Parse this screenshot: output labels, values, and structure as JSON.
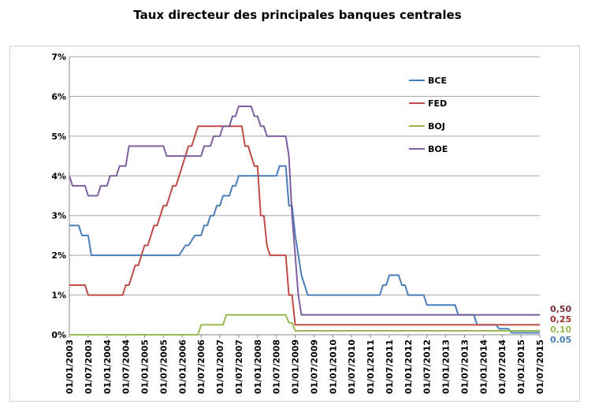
{
  "chart_data": {
    "type": "line",
    "title": "Taux directeur des principales banques centrales",
    "xlabel": "",
    "ylabel": "",
    "ylim": [
      0,
      7
    ],
    "yticks": [
      "0%",
      "1%",
      "2%",
      "3%",
      "4%",
      "5%",
      "6%",
      "7%"
    ],
    "xlim": [
      "2003-01",
      "2015-07"
    ],
    "xticks": [
      "01/01/2003",
      "01/07/2003",
      "01/01/2004",
      "01/07/2004",
      "01/01/2005",
      "01/07/2005",
      "01/01/2006",
      "01/07/2006",
      "01/01/2007",
      "01/07/2007",
      "01/01/2008",
      "01/07/2008",
      "01/01/2009",
      "01/07/2009",
      "01/01/2010",
      "01/07/2010",
      "01/01/2011",
      "01/07/2011",
      "01/01/2012",
      "01/07/2012",
      "01/01/2013",
      "01/07/2013",
      "01/01/2014",
      "01/07/2014",
      "01/01/2015",
      "01/07/2015"
    ],
    "grid": true,
    "legend_position": "top-right",
    "series": [
      {
        "name": "BCE",
        "color": "#4a7ebb",
        "points": [
          [
            "2003-01",
            2.75
          ],
          [
            "2003-04",
            2.75
          ],
          [
            "2003-05",
            2.5
          ],
          [
            "2003-07",
            2.5
          ],
          [
            "2003-08",
            2.0
          ],
          [
            "2005-12",
            2.0
          ],
          [
            "2006-02",
            2.25
          ],
          [
            "2006-03",
            2.25
          ],
          [
            "2006-05",
            2.5
          ],
          [
            "2006-07",
            2.5
          ],
          [
            "2006-08",
            2.75
          ],
          [
            "2006-09",
            2.75
          ],
          [
            "2006-10",
            3.0
          ],
          [
            "2006-11",
            3.0
          ],
          [
            "2006-12",
            3.25
          ],
          [
            "2007-01",
            3.25
          ],
          [
            "2007-02",
            3.5
          ],
          [
            "2007-04",
            3.5
          ],
          [
            "2007-05",
            3.75
          ],
          [
            "2007-06",
            3.75
          ],
          [
            "2007-07",
            4.0
          ],
          [
            "2008-07",
            4.0
          ],
          [
            "2008-08",
            4.25
          ],
          [
            "2008-10",
            4.25
          ],
          [
            "2008-11",
            3.25
          ],
          [
            "2008-12",
            3.25
          ],
          [
            "2009-01",
            2.5
          ],
          [
            "2009-03",
            1.5
          ],
          [
            "2009-05",
            1.0
          ],
          [
            "2011-04",
            1.0
          ],
          [
            "2011-05",
            1.25
          ],
          [
            "2011-06",
            1.25
          ],
          [
            "2011-07",
            1.5
          ],
          [
            "2011-10",
            1.5
          ],
          [
            "2011-11",
            1.25
          ],
          [
            "2011-12",
            1.25
          ],
          [
            "2012-01",
            1.0
          ],
          [
            "2012-06",
            1.0
          ],
          [
            "2012-07",
            0.75
          ],
          [
            "2013-04",
            0.75
          ],
          [
            "2013-05",
            0.5
          ],
          [
            "2013-10",
            0.5
          ],
          [
            "2013-11",
            0.25
          ],
          [
            "2014-05",
            0.25
          ],
          [
            "2014-06",
            0.15
          ],
          [
            "2014-09",
            0.15
          ],
          [
            "2014-10",
            0.05
          ],
          [
            "2015-07",
            0.05
          ]
        ]
      },
      {
        "name": "FED",
        "color": "#be4b48",
        "points": [
          [
            "2003-01",
            1.25
          ],
          [
            "2003-06",
            1.25
          ],
          [
            "2003-07",
            1.0
          ],
          [
            "2004-06",
            1.0
          ],
          [
            "2004-07",
            1.25
          ],
          [
            "2004-08",
            1.25
          ],
          [
            "2004-09",
            1.5
          ],
          [
            "2004-10",
            1.75
          ],
          [
            "2004-11",
            1.75
          ],
          [
            "2004-12",
            2.0
          ],
          [
            "2005-01",
            2.25
          ],
          [
            "2005-02",
            2.25
          ],
          [
            "2005-03",
            2.5
          ],
          [
            "2005-04",
            2.75
          ],
          [
            "2005-05",
            2.75
          ],
          [
            "2005-06",
            3.0
          ],
          [
            "2005-07",
            3.25
          ],
          [
            "2005-08",
            3.25
          ],
          [
            "2005-09",
            3.5
          ],
          [
            "2005-10",
            3.75
          ],
          [
            "2005-11",
            3.75
          ],
          [
            "2005-12",
            4.0
          ],
          [
            "2006-01",
            4.25
          ],
          [
            "2006-02",
            4.5
          ],
          [
            "2006-03",
            4.75
          ],
          [
            "2006-04",
            4.75
          ],
          [
            "2006-05",
            5.0
          ],
          [
            "2006-06",
            5.25
          ],
          [
            "2007-08",
            5.25
          ],
          [
            "2007-09",
            4.75
          ],
          [
            "2007-10",
            4.75
          ],
          [
            "2007-11",
            4.5
          ],
          [
            "2007-12",
            4.25
          ],
          [
            "2008-01",
            4.25
          ],
          [
            "2008-02",
            3.0
          ],
          [
            "2008-03",
            3.0
          ],
          [
            "2008-04",
            2.25
          ],
          [
            "2008-05",
            2.0
          ],
          [
            "2008-10",
            2.0
          ],
          [
            "2008-11",
            1.0
          ],
          [
            "2008-12",
            1.0
          ],
          [
            "2009-01",
            0.25
          ],
          [
            "2015-07",
            0.25
          ]
        ]
      },
      {
        "name": "BOJ",
        "color": "#98b954",
        "points": [
          [
            "2003-01",
            0.0
          ],
          [
            "2006-06",
            0.0
          ],
          [
            "2006-07",
            0.25
          ],
          [
            "2007-02",
            0.25
          ],
          [
            "2007-03",
            0.5
          ],
          [
            "2008-10",
            0.5
          ],
          [
            "2008-11",
            0.3
          ],
          [
            "2008-12",
            0.3
          ],
          [
            "2009-01",
            0.1
          ],
          [
            "2015-07",
            0.1
          ]
        ]
      },
      {
        "name": "BOE",
        "color": "#7d60a0",
        "points": [
          [
            "2003-01",
            4.0
          ],
          [
            "2003-02",
            3.75
          ],
          [
            "2003-06",
            3.75
          ],
          [
            "2003-07",
            3.5
          ],
          [
            "2003-10",
            3.5
          ],
          [
            "2003-11",
            3.75
          ],
          [
            "2004-01",
            3.75
          ],
          [
            "2004-02",
            4.0
          ],
          [
            "2004-04",
            4.0
          ],
          [
            "2004-05",
            4.25
          ],
          [
            "2004-07",
            4.25
          ],
          [
            "2004-08",
            4.75
          ],
          [
            "2005-07",
            4.75
          ],
          [
            "2005-08",
            4.5
          ],
          [
            "2006-07",
            4.5
          ],
          [
            "2006-08",
            4.75
          ],
          [
            "2006-10",
            4.75
          ],
          [
            "2006-11",
            5.0
          ],
          [
            "2007-01",
            5.0
          ],
          [
            "2007-02",
            5.25
          ],
          [
            "2007-04",
            5.25
          ],
          [
            "2007-05",
            5.5
          ],
          [
            "2007-06",
            5.5
          ],
          [
            "2007-07",
            5.75
          ],
          [
            "2007-11",
            5.75
          ],
          [
            "2007-12",
            5.5
          ],
          [
            "2008-01",
            5.5
          ],
          [
            "2008-02",
            5.25
          ],
          [
            "2008-03",
            5.25
          ],
          [
            "2008-04",
            5.0
          ],
          [
            "2008-10",
            5.0
          ],
          [
            "2008-11",
            4.5
          ],
          [
            "2008-12",
            3.0
          ],
          [
            "2009-01",
            2.0
          ],
          [
            "2009-02",
            1.0
          ],
          [
            "2009-03",
            0.5
          ],
          [
            "2015-07",
            0.5
          ]
        ]
      }
    ],
    "annotations": [
      {
        "text": "0,50",
        "color": "#7a2e3a",
        "value": 0.5
      },
      {
        "text": "0,25",
        "color": "#9a2e2e",
        "value": 0.25
      },
      {
        "text": "0,10",
        "color": "#98b954",
        "value": 0.1
      },
      {
        "text": "0.05",
        "color": "#4a7ebb",
        "value": 0.05
      }
    ]
  }
}
